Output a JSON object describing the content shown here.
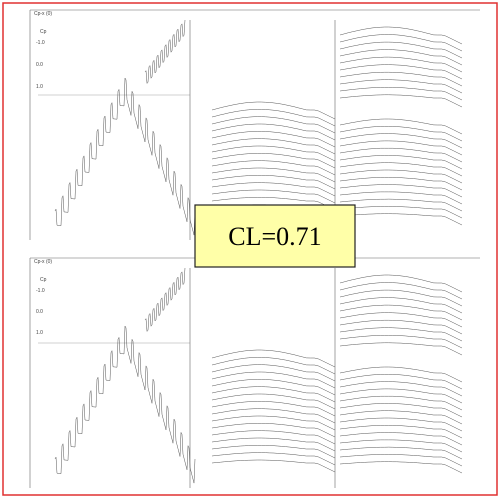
{
  "panels": [
    {
      "title": "Cp-x (0)",
      "axis_label": "Cp",
      "ticks": [
        "-1.0",
        "0.0",
        "1.0"
      ]
    },
    {
      "title": "Cp-x (0)",
      "axis_label": "Cp",
      "ticks": [
        "-1.0",
        "0.0",
        "1.0"
      ]
    }
  ],
  "annotation": "CL=0.71"
}
